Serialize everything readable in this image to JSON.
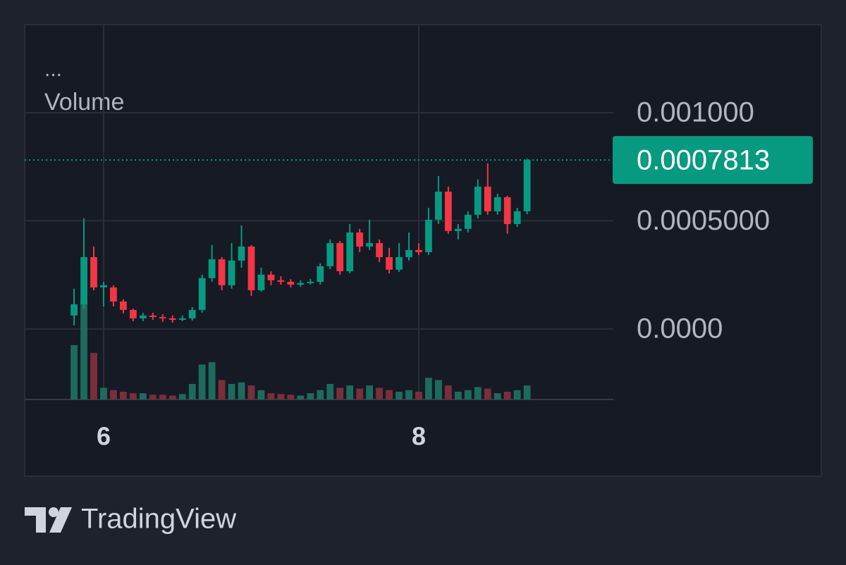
{
  "chart_data": {
    "type": "candlestick",
    "legend_dots": "...",
    "volume_label": "Volume",
    "brand": "TradingView",
    "x": [
      5.8125,
      5.875,
      5.9375,
      6.0,
      6.0625,
      6.125,
      6.1875,
      6.25,
      6.3125,
      6.375,
      6.4375,
      6.5,
      6.5625,
      6.625,
      6.6875,
      6.75,
      6.8125,
      6.875,
      6.9375,
      7.0,
      7.0625,
      7.125,
      7.1875,
      7.25,
      7.3125,
      7.375,
      7.4375,
      7.5,
      7.5625,
      7.625,
      7.6875,
      7.75,
      7.8125,
      7.875,
      7.9375,
      8.0,
      8.0625,
      8.125,
      8.1875,
      8.25,
      8.3125,
      8.375,
      8.4375,
      8.5,
      8.5625,
      8.625,
      8.6875
    ],
    "open": [
      6.2e-05,
      0.000114,
      0.000332,
      0.000192,
      0.000192,
      0.000127,
      8.8e-05,
      4.9e-05,
      6.2e-05,
      5.5e-05,
      4.9e-05,
      4.2e-05,
      4.9e-05,
      8.8e-05,
      0.000235,
      0.000322,
      0.000202,
      0.000316,
      0.000381,
      0.000179,
      0.000251,
      0.000225,
      0.000218,
      0.000205,
      0.000212,
      0.000218,
      0.00029,
      0.000397,
      0.000267,
      0.000446,
      0.000381,
      0.000397,
      0.000332,
      0.000274,
      0.000332,
      0.000365,
      0.000355,
      0.000505,
      0.000635,
      0.000453,
      0.000463,
      0.000528,
      0.000658,
      0.000544,
      0.000609,
      0.000485,
      0.000544
    ],
    "high": [
      0.000186,
      0.000511,
      0.000381,
      0.000218,
      0.000202,
      0.000137,
      9.4e-05,
      7.5e-05,
      7.5e-05,
      6.8e-05,
      6.2e-05,
      6.2e-05,
      0.000101,
      0.000251,
      0.000388,
      0.000332,
      0.000397,
      0.000479,
      0.000388,
      0.000283,
      0.000267,
      0.000244,
      0.000231,
      0.000225,
      0.000231,
      0.000303,
      0.000414,
      0.000407,
      0.000485,
      0.000463,
      0.000505,
      0.000414,
      0.000375,
      0.000397,
      0.000446,
      0.000397,
      0.00056,
      0.000707,
      0.000658,
      0.000485,
      0.000544,
      0.000691,
      0.000765,
      0.000625,
      0.000616,
      0.00056,
      0.000788
    ],
    "low": [
      1.6e-05,
      9.4e-05,
      0.000179,
      0.000104,
      0.000104,
      7.2e-05,
      3.6e-05,
      3.6e-05,
      4.2e-05,
      3.3e-05,
      2.9e-05,
      3.6e-05,
      3.9e-05,
      7.5e-05,
      0.000218,
      0.000179,
      0.000186,
      0.000283,
      0.000153,
      0.000173,
      0.000202,
      0.000205,
      0.000192,
      0.000195,
      0.000205,
      0.000205,
      0.000277,
      0.000251,
      0.000257,
      0.000355,
      0.000365,
      0.000309,
      0.000257,
      0.000264,
      0.000316,
      0.000342,
      0.000342,
      0.000485,
      0.00044,
      0.000414,
      0.000446,
      0.000511,
      0.000528,
      0.000528,
      0.00044,
      0.000472,
      0.00053
    ],
    "close": [
      0.000114,
      0.000332,
      0.000192,
      0.000202,
      0.000127,
      8.8e-05,
      4.9e-05,
      6.2e-05,
      5.5e-05,
      4.9e-05,
      4.2e-05,
      4.9e-05,
      8.8e-05,
      0.000235,
      0.000322,
      0.000202,
      0.000316,
      0.000381,
      0.000179,
      0.000251,
      0.000225,
      0.000218,
      0.000205,
      0.000212,
      0.000218,
      0.00029,
      0.000397,
      0.000267,
      0.000446,
      0.000381,
      0.000397,
      0.000332,
      0.000274,
      0.000332,
      0.000365,
      0.000355,
      0.000505,
      0.000635,
      0.000453,
      0.000463,
      0.000528,
      0.000658,
      0.000544,
      0.000609,
      0.000485,
      0.000544,
      0.0007813
    ],
    "volume": [
      70,
      130,
      60,
      15,
      12,
      10,
      8,
      8,
      6,
      6,
      5,
      7,
      20,
      45,
      48,
      25,
      20,
      22,
      18,
      12,
      8,
      7,
      6,
      5,
      8,
      12,
      20,
      15,
      18,
      14,
      18,
      15,
      12,
      10,
      12,
      10,
      28,
      25,
      18,
      10,
      12,
      16,
      14,
      8,
      10,
      12,
      18
    ],
    "up_color": "#089981",
    "down_color": "#f23645",
    "volume_up_color": "#1d6b5f",
    "volume_down_color": "#7a2f3a",
    "xlim": [
      5.499,
      9.235
    ],
    "xticks": [
      6,
      8
    ],
    "ylim": [
      -0.000326,
      0.001407
    ],
    "yticks": [
      {
        "value": 0.001,
        "label": "0.001000"
      },
      {
        "value": 0.0005,
        "label": "0.0005000"
      },
      {
        "value": 0,
        "label": "0.0000"
      }
    ],
    "volume_lim": [
      0,
      140
    ],
    "grid": true
  }
}
